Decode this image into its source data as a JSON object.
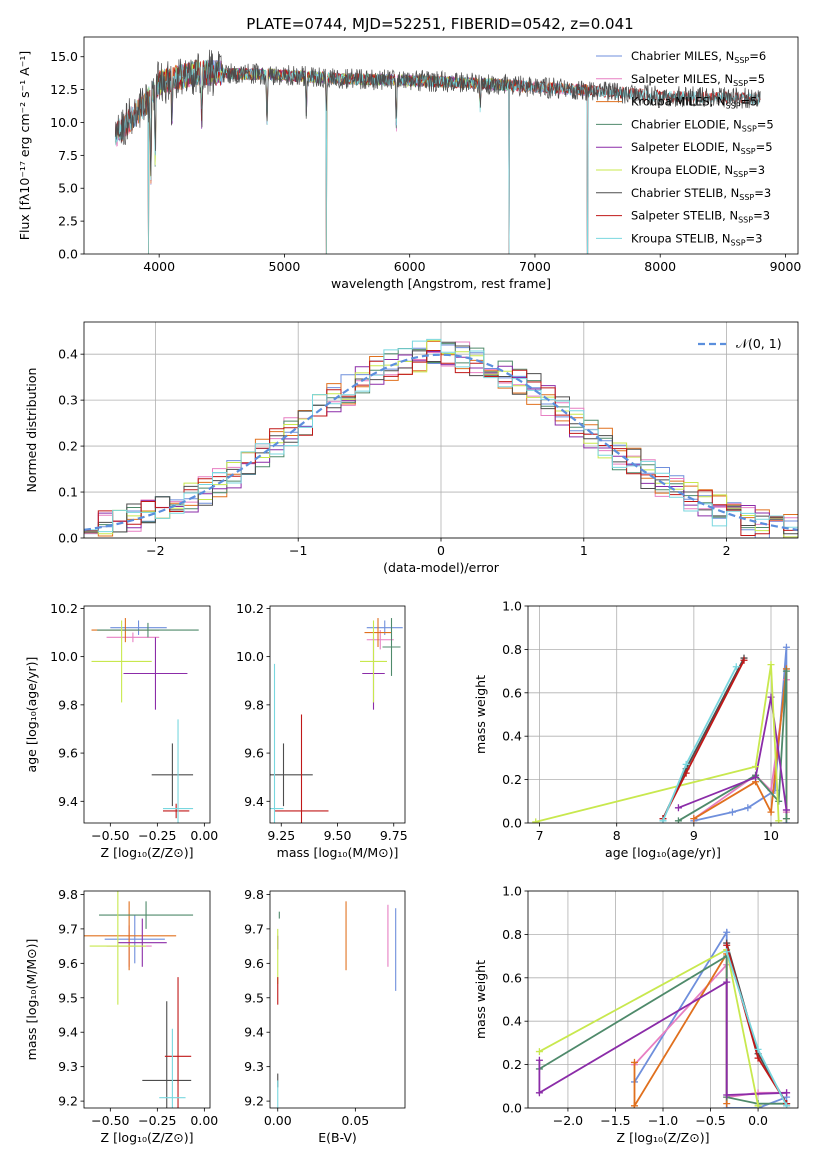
{
  "figure_title": "PLATE=0744, MJD=52251, FIBERID=0542, z=0.041",
  "model_colors": [
    "#6f8fdc",
    "#e77fc2",
    "#e0701e",
    "#4f8a6b",
    "#8b2ca8",
    "#c8e84e",
    "#4d4d4d",
    "#c01818",
    "#79d7df"
  ],
  "gauss_color": "#5b8fdd",
  "chart_data": [
    {
      "id": "spectrum",
      "type": "line",
      "title": "PLATE=0744, MJD=52251, FIBERID=0542, z=0.041",
      "xlabel": "wavelength [Angstrom, rest frame]",
      "ylabel": "Flux [fλ10⁻¹⁷ erg cm⁻² s⁻¹ A⁻¹]",
      "xlim": [
        3400,
        9100
      ],
      "ylim": [
        0,
        16.5
      ],
      "xticks": [
        4000,
        5000,
        6000,
        7000,
        8000,
        9000
      ],
      "yticks": [
        0.0,
        2.5,
        5.0,
        7.5,
        10.0,
        12.5,
        15.0
      ],
      "grid": false,
      "legend_position": "top-right",
      "series": [
        {
          "name": "Chabrier MILES, N_SSP=6",
          "label_main": "Chabrier MILES, N",
          "label_sub": "SSP",
          "label_tail": "=6",
          "x_range": [
            3650,
            7420
          ]
        },
        {
          "name": "Salpeter MILES, N_SSP=5",
          "label_main": "Salpeter MILES, N",
          "label_sub": "SSP",
          "label_tail": "=5",
          "x_range": [
            3650,
            7420
          ]
        },
        {
          "name": "Kroupa MILES, N_SSP=5",
          "label_main": "Kroupa MILES, N",
          "label_sub": "SSP",
          "label_tail": "=5",
          "x_range": [
            3650,
            7420
          ]
        },
        {
          "name": "Chabrier ELODIE, N_SSP=5",
          "label_main": "Chabrier ELODIE, N",
          "label_sub": "SSP",
          "label_tail": "=5",
          "x_range": [
            3900,
            6800
          ]
        },
        {
          "name": "Salpeter ELODIE, N_SSP=5",
          "label_main": "Salpeter ELODIE, N",
          "label_sub": "SSP",
          "label_tail": "=5",
          "x_range": [
            3900,
            6800
          ]
        },
        {
          "name": "Kroupa ELODIE, N_SSP=3",
          "label_main": "Kroupa ELODIE, N",
          "label_sub": "SSP",
          "label_tail": "=3",
          "x_range": [
            3900,
            6800
          ]
        },
        {
          "name": "Chabrier STELIB, N_SSP=3",
          "label_main": "Chabrier STELIB, N",
          "label_sub": "SSP",
          "label_tail": "=3",
          "x_range": [
            3650,
            8800
          ]
        },
        {
          "name": "Salpeter STELIB, N_SSP=3",
          "label_main": "Salpeter STELIB, N",
          "label_sub": "SSP",
          "label_tail": "=3",
          "x_range": [
            3650,
            8800
          ]
        },
        {
          "name": "Kroupa STELIB, N_SSP=3",
          "label_main": "Kroupa STELIB, N",
          "label_sub": "SSP",
          "label_tail": "=3",
          "x_range": [
            3650,
            8800
          ]
        }
      ],
      "spectrum_shape": {
        "continuum": [
          [
            3650,
            9.0
          ],
          [
            3900,
            11.5
          ],
          [
            4000,
            13.0
          ],
          [
            4300,
            13.8
          ],
          [
            5000,
            13.6
          ],
          [
            5500,
            13.3
          ],
          [
            6000,
            13.2
          ],
          [
            6500,
            13.0
          ],
          [
            7000,
            12.7
          ],
          [
            7500,
            12.4
          ],
          [
            8000,
            12.0
          ],
          [
            8500,
            11.9
          ],
          [
            8800,
            11.8
          ]
        ],
        "absorption_lines": [
          [
            3934,
            7.0
          ],
          [
            3969,
            6.0
          ],
          [
            4102,
            3.5
          ],
          [
            4340,
            4.0
          ],
          [
            4861,
            4.0
          ],
          [
            5175,
            3.0
          ],
          [
            5335,
            2.0
          ],
          [
            5893,
            4.0
          ],
          [
            6563,
            2.0
          ]
        ],
        "model_dropouts": [
          [
            3915,
            0.0
          ],
          [
            5335,
            0.0
          ],
          [
            6795,
            0.0
          ],
          [
            7420,
            0.0
          ]
        ]
      }
    },
    {
      "id": "residual_histogram",
      "type": "histogram",
      "xlabel": "(data-model)/error",
      "ylabel": "Normed distribution",
      "xlim": [
        -2.5,
        2.5
      ],
      "ylim": [
        0,
        0.47
      ],
      "xticks": [
        -2,
        -1,
        0,
        1,
        2
      ],
      "yticks": [
        0.0,
        0.1,
        0.2,
        0.3,
        0.4
      ],
      "grid": true,
      "bin_width": 0.1,
      "legend_position": "top-right",
      "reference_curve": {
        "name": "N(0,1)",
        "label": "𝒩(0, 1)",
        "mean": 0,
        "sigma": 1,
        "style": "dashed"
      }
    },
    {
      "id": "age_vs_Z",
      "type": "errorbar",
      "xlabel": "Z [log₁₀(Z/Z⊙)]",
      "ylabel": "age  [log₁₀(age/yr)]",
      "xlim": [
        -0.64,
        0.03
      ],
      "ylim": [
        9.31,
        10.21
      ],
      "xticks": [
        -0.5,
        -0.25,
        0.0
      ],
      "xticklabels": [
        "−0.50",
        "−0.25",
        "0.00"
      ],
      "yticks": [
        9.4,
        9.6,
        9.8,
        10.0,
        10.2
      ],
      "grid": false,
      "points": [
        {
          "x": -0.35,
          "xerr": 0.15,
          "y": 10.12,
          "yerr": 0.03,
          "c": 0
        },
        {
          "x": -0.38,
          "xerr": 0.14,
          "y": 10.08,
          "yerr": 0.02,
          "c": 1
        },
        {
          "x": -0.42,
          "xerr": 0.18,
          "y": 10.11,
          "yerr": 0.05,
          "c": 2
        },
        {
          "x": -0.3,
          "xerr": 0.27,
          "y": 10.11,
          "yerr": 0.03,
          "c": 3
        },
        {
          "x": -0.26,
          "xerr": 0.17,
          "y": 9.93,
          "yerr": 0.15,
          "c": 4
        },
        {
          "x": -0.44,
          "xerr": 0.16,
          "y": 9.98,
          "yerr": 0.17,
          "c": 5
        },
        {
          "x": -0.17,
          "xerr": 0.11,
          "y": 9.51,
          "yerr": 0.13,
          "c": 6
        },
        {
          "x": -0.15,
          "xerr": 0.07,
          "y": 9.36,
          "yerr": 0.03,
          "c": 7
        },
        {
          "x": -0.14,
          "xerr": 0.08,
          "y": 9.37,
          "yerr": 0.37,
          "c": 8
        }
      ]
    },
    {
      "id": "age_vs_mass",
      "type": "errorbar",
      "xlabel": "mass [log₁₀(M/M⊙)]",
      "ylabel": "",
      "xlim": [
        9.2,
        9.8
      ],
      "ylim": [
        9.31,
        10.21
      ],
      "xticks": [
        9.25,
        9.5,
        9.75
      ],
      "yticks": [
        9.4,
        9.6,
        9.8,
        10.0,
        10.2
      ],
      "grid": false,
      "points": [
        {
          "x": 9.71,
          "xerr": 0.08,
          "y": 10.12,
          "yerr": 0.03,
          "c": 0
        },
        {
          "x": 9.69,
          "xerr": 0.06,
          "y": 10.07,
          "yerr": 0.04,
          "c": 1
        },
        {
          "x": 9.68,
          "xerr": 0.06,
          "y": 10.1,
          "yerr": 0.06,
          "c": 2
        },
        {
          "x": 9.74,
          "xerr": 0.04,
          "y": 10.04,
          "yerr": 0.12,
          "c": 3
        },
        {
          "x": 9.66,
          "xerr": 0.05,
          "y": 9.93,
          "yerr": 0.15,
          "c": 4
        },
        {
          "x": 9.66,
          "xerr": 0.06,
          "y": 9.98,
          "yerr": 0.17,
          "c": 5
        },
        {
          "x": 9.26,
          "xerr": 0.13,
          "y": 9.51,
          "yerr": 0.13,
          "c": 6
        },
        {
          "x": 9.34,
          "xerr": 0.12,
          "y": 9.36,
          "yerr": 0.4,
          "c": 7
        },
        {
          "x": 9.22,
          "xerr": 0.04,
          "y": 9.37,
          "yerr": 0.6,
          "c": 8
        }
      ]
    },
    {
      "id": "mass_weight_vs_age",
      "type": "line",
      "xlabel": "age  [log₁₀(age/yr)]",
      "ylabel": "mass weight",
      "xlim": [
        6.85,
        10.35
      ],
      "ylim": [
        0,
        1.0
      ],
      "xticks": [
        7,
        8,
        9,
        10
      ],
      "yticks": [
        0.0,
        0.2,
        0.4,
        0.6,
        0.8,
        1.0
      ],
      "grid": true,
      "series": [
        {
          "c": 0,
          "x": [
            9.0,
            9.5,
            9.7,
            10.05,
            10.2,
            10.2
          ],
          "y": [
            0.01,
            0.05,
            0.07,
            0.15,
            0.81,
            0.0
          ]
        },
        {
          "c": 1,
          "x": [
            9.0,
            9.8,
            10.0,
            10.2,
            10.2
          ],
          "y": [
            0.02,
            0.22,
            0.15,
            0.66,
            0.05
          ]
        },
        {
          "c": 2,
          "x": [
            9.0,
            9.8,
            10.0,
            10.2,
            10.2
          ],
          "y": [
            0.02,
            0.19,
            0.05,
            0.71,
            0.02
          ]
        },
        {
          "c": 3,
          "x": [
            8.8,
            9.8,
            10.1,
            10.2,
            10.2
          ],
          "y": [
            0.01,
            0.22,
            0.1,
            0.7,
            0.02
          ]
        },
        {
          "c": 4,
          "x": [
            8.8,
            9.8,
            10.0,
            10.2,
            10.2
          ],
          "y": [
            0.07,
            0.21,
            0.58,
            0.06,
            0.06
          ]
        },
        {
          "c": 5,
          "x": [
            6.95,
            9.8,
            10.0,
            10.1
          ],
          "y": [
            0.005,
            0.26,
            0.73,
            0.01
          ]
        },
        {
          "c": 6,
          "x": [
            8.6,
            8.9,
            9.65
          ],
          "y": [
            0.02,
            0.25,
            0.76
          ]
        },
        {
          "c": 7,
          "x": [
            8.6,
            8.9,
            9.65
          ],
          "y": [
            0.02,
            0.23,
            0.75
          ]
        },
        {
          "c": 8,
          "x": [
            8.6,
            8.9,
            9.55
          ],
          "y": [
            0.01,
            0.27,
            0.72
          ]
        }
      ]
    },
    {
      "id": "mass_vs_Z",
      "type": "errorbar",
      "xlabel": "Z [log₁₀(Z/Z⊙)]",
      "ylabel": "mass [log₁₀(M/M⊙)]",
      "xlim": [
        -0.64,
        0.03
      ],
      "ylim": [
        9.18,
        9.81
      ],
      "xticks": [
        -0.5,
        -0.25,
        0.0
      ],
      "xticklabels": [
        "−0.50",
        "−0.25",
        "0.00"
      ],
      "yticks": [
        9.2,
        9.3,
        9.4,
        9.5,
        9.6,
        9.7,
        9.8
      ],
      "grid": false,
      "points": [
        {
          "x": -0.37,
          "xerr": 0.16,
          "y": 9.67,
          "yerr": 0.07,
          "c": 0
        },
        {
          "x": -0.4,
          "xerr": 0.12,
          "y": 9.65,
          "yerr": 0.06,
          "c": 1
        },
        {
          "x": -0.4,
          "xerr": 0.25,
          "y": 9.68,
          "yerr": 0.1,
          "c": 2
        },
        {
          "x": -0.31,
          "xerr": 0.25,
          "y": 9.74,
          "yerr": 0.04,
          "c": 3
        },
        {
          "x": -0.33,
          "xerr": 0.13,
          "y": 9.66,
          "yerr": 0.07,
          "c": 4
        },
        {
          "x": -0.46,
          "xerr": 0.15,
          "y": 9.65,
          "yerr": 0.17,
          "c": 5
        },
        {
          "x": -0.2,
          "xerr": 0.13,
          "y": 9.26,
          "yerr": 0.23,
          "c": 6
        },
        {
          "x": -0.14,
          "xerr": 0.07,
          "y": 9.33,
          "yerr": 0.23,
          "c": 7
        },
        {
          "x": -0.17,
          "xerr": 0.07,
          "y": 9.21,
          "yerr": 0.2,
          "c": 8
        }
      ]
    },
    {
      "id": "mass_vs_EBV",
      "type": "errorbar",
      "xlabel": "E(B-V)",
      "ylabel": "",
      "xlim": [
        -0.005,
        0.082
      ],
      "ylim": [
        9.18,
        9.81
      ],
      "xticks": [
        0.0,
        0.05
      ],
      "yticks": [
        9.2,
        9.3,
        9.4,
        9.5,
        9.6,
        9.7,
        9.8
      ],
      "grid": false,
      "points": [
        {
          "x": 0.076,
          "xerr": 0.0,
          "y": 9.64,
          "yerr": 0.12,
          "c": 0
        },
        {
          "x": 0.071,
          "xerr": 0.0,
          "y": 9.68,
          "yerr": 0.09,
          "c": 1
        },
        {
          "x": 0.044,
          "xerr": 0.0,
          "y": 9.68,
          "yerr": 0.1,
          "c": 2
        },
        {
          "x": 0.001,
          "xerr": 0.0,
          "y": 9.74,
          "yerr": 0.01,
          "c": 3
        },
        {
          "x": 0.0,
          "xerr": 0.0,
          "y": 9.66,
          "yerr": 0.02,
          "c": 4
        },
        {
          "x": 0.0,
          "xerr": 0.0,
          "y": 9.62,
          "yerr": 0.08,
          "c": 5
        },
        {
          "x": 0.0,
          "xerr": 0.0,
          "y": 9.26,
          "yerr": 0.02,
          "c": 6
        },
        {
          "x": 0.0,
          "xerr": 0.0,
          "y": 9.52,
          "yerr": 0.04,
          "c": 7
        },
        {
          "x": 0.0,
          "xerr": 0.0,
          "y": 9.22,
          "yerr": 0.04,
          "c": 8
        }
      ]
    },
    {
      "id": "mass_weight_vs_Z",
      "type": "line",
      "xlabel": "Z [log₁₀(Z/Z⊙)]",
      "ylabel": "mass weight",
      "xlim": [
        -2.42,
        0.42
      ],
      "ylim": [
        0,
        1.0
      ],
      "xticks": [
        -2.0,
        -1.5,
        -1.0,
        -0.5,
        0.0
      ],
      "xticklabels": [
        "−2.0",
        "−1.5",
        "−1.0",
        "−0.5",
        "0.0"
      ],
      "yticks": [
        0.0,
        0.2,
        0.4,
        0.6,
        0.8,
        1.0
      ],
      "grid": true,
      "series": [
        {
          "c": 0,
          "x": [
            -1.3,
            -0.33,
            -0.33,
            0.0,
            0.3
          ],
          "y": [
            0.12,
            0.81,
            0.0,
            0.0,
            0.05
          ]
        },
        {
          "c": 1,
          "x": [
            -1.3,
            -0.33,
            -0.33,
            0.0,
            0.3
          ],
          "y": [
            0.2,
            0.66,
            0.05,
            0.07,
            0.07
          ]
        },
        {
          "c": 2,
          "x": [
            -1.3,
            -1.3,
            -0.33,
            -0.33
          ],
          "y": [
            0.21,
            0.01,
            0.71,
            0.02
          ]
        },
        {
          "c": 3,
          "x": [
            -2.3,
            -0.33,
            -0.33,
            0.0,
            0.3
          ],
          "y": [
            0.18,
            0.7,
            0.05,
            0.02,
            0.02
          ]
        },
        {
          "c": 4,
          "x": [
            -2.3,
            -2.3,
            -0.33,
            -0.33,
            0.3
          ],
          "y": [
            0.22,
            0.07,
            0.58,
            0.06,
            0.07
          ]
        },
        {
          "c": 5,
          "x": [
            -2.3,
            -0.33,
            0.0
          ],
          "y": [
            0.26,
            0.73,
            0.01
          ]
        },
        {
          "c": 6,
          "x": [
            -0.33,
            0.0,
            0.3
          ],
          "y": [
            0.76,
            0.25,
            0.02
          ]
        },
        {
          "c": 7,
          "x": [
            -0.33,
            0.0,
            0.3
          ],
          "y": [
            0.75,
            0.23,
            0.02
          ]
        },
        {
          "c": 8,
          "x": [
            -0.33,
            0.0,
            0.3
          ],
          "y": [
            0.72,
            0.27,
            0.01
          ]
        }
      ]
    }
  ]
}
